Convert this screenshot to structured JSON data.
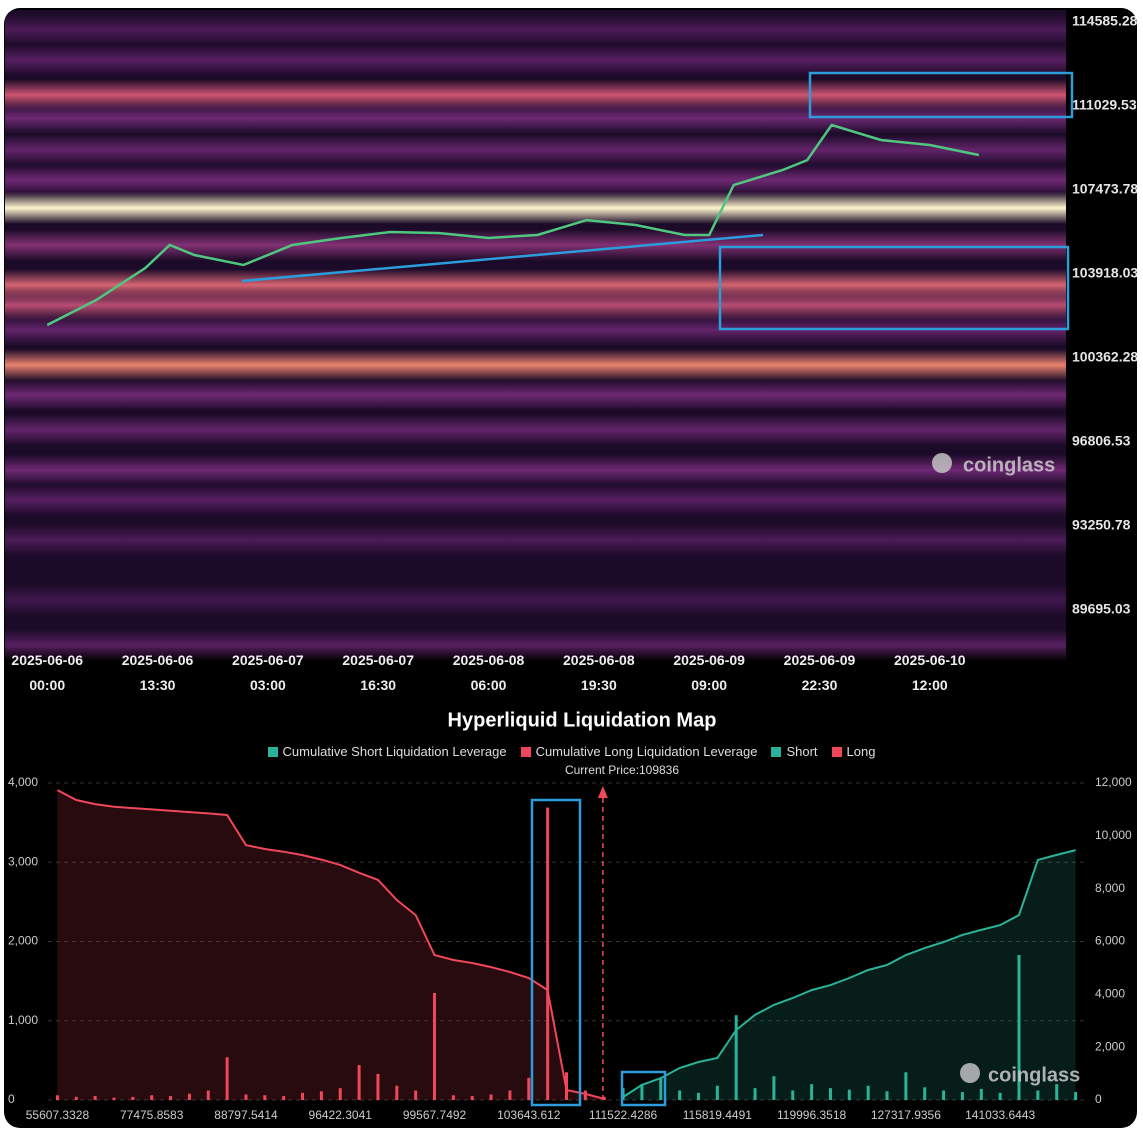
{
  "chart_data": [
    {
      "type": "heatmap",
      "xlim": [
        "2025-06-05 18:50",
        "2025-06-11 04:40"
      ],
      "ylim": [
        88086,
        115093
      ],
      "yticks": [
        114585.28,
        111029.53,
        107473.78,
        103918.03,
        100362.28,
        96806.53,
        93250.78,
        89695.03
      ],
      "xticks": [
        "2025-06-06 00:00",
        "2025-06-06 13:30",
        "2025-06-07 03:00",
        "2025-06-07 16:30",
        "2025-06-08 06:00",
        "2025-06-08 19:30",
        "2025-06-09 09:00",
        "2025-06-09 22:30",
        "2025-06-10 12:00"
      ],
      "bands": [
        {
          "price": 114247,
          "level": 0.2
        },
        {
          "price": 112977,
          "level": 0.25
        },
        {
          "price": 111495,
          "level": 0.6
        },
        {
          "price": 110520,
          "level": 0.35
        },
        {
          "price": 109167,
          "level": 0.3
        },
        {
          "price": 107897,
          "level": 0.35
        },
        {
          "price": 106712,
          "level": 1.0
        },
        {
          "price": 105145,
          "level": 0.4
        },
        {
          "price": 103452,
          "level": 0.65
        },
        {
          "price": 102605,
          "level": 0.55
        },
        {
          "price": 101547,
          "level": 0.3
        },
        {
          "price": 100065,
          "level": 0.75
        },
        {
          "price": 98795,
          "level": 0.35
        },
        {
          "price": 97314,
          "level": 0.3
        },
        {
          "price": 95620,
          "level": 0.35
        },
        {
          "price": 94350,
          "level": 0.25
        },
        {
          "price": 92657,
          "level": 0.2
        },
        {
          "price": 90117,
          "level": 0.15
        },
        {
          "price": 88212,
          "level": 0.25
        }
      ],
      "price": {
        "color": "#4fc77f",
        "x": [
          "2025-06-06 00:00",
          "2025-06-06 06:00",
          "2025-06-06 12:00",
          "2025-06-06 15:00",
          "2025-06-06 18:00",
          "2025-06-07 00:00",
          "2025-06-07 06:00",
          "2025-06-07 12:00",
          "2025-06-07 18:00",
          "2025-06-08 00:00",
          "2025-06-08 06:00",
          "2025-06-08 12:00",
          "2025-06-08 18:00",
          "2025-06-09 00:00",
          "2025-06-09 06:00",
          "2025-06-09 09:00",
          "2025-06-09 12:00",
          "2025-06-09 18:00",
          "2025-06-09 21:00",
          "2025-06-10 00:00",
          "2025-06-10 06:00",
          "2025-06-10 12:00",
          "2025-06-10 18:00"
        ],
        "values": [
          101760,
          102817,
          104170,
          105145,
          104720,
          104300,
          105145,
          105440,
          105695,
          105650,
          105440,
          105570,
          106200,
          105990,
          105570,
          105570,
          107685,
          108320,
          108740,
          110225,
          109590,
          109380,
          108955
        ]
      },
      "watermark": "coinglass"
    },
    {
      "type": "bar",
      "title": "Hyperliquid Liquidation Map",
      "annotation": "Current Price:109836",
      "current_price": 109836,
      "watermark": "coinglass",
      "categories": [
        55607.3328,
        null,
        null,
        null,
        null,
        77475.8583,
        null,
        null,
        null,
        null,
        88797.5414,
        null,
        null,
        null,
        null,
        96422.3041,
        null,
        null,
        null,
        null,
        99567.7492,
        null,
        null,
        null,
        null,
        103643.612,
        null,
        null,
        null,
        null,
        111522.4286,
        null,
        null,
        null,
        null,
        115819.4491,
        null,
        null,
        null,
        null,
        119996.3518,
        null,
        null,
        null,
        null,
        127317.9356,
        null,
        null,
        null,
        null,
        141033.6443,
        null,
        null,
        null,
        null
      ],
      "ylim": [
        0,
        4000
      ],
      "yticks": [
        0,
        {
          "value": 1000,
          "label": "1,000"
        },
        {
          "value": 2000,
          "label": "2,000"
        },
        {
          "value": 3000,
          "label": "3,000"
        },
        {
          "value": 4000,
          "label": "4,000"
        }
      ],
      "y2lim": [
        0,
        12000
      ],
      "y2ticks": [
        0,
        {
          "value": 2000,
          "label": "2,000"
        },
        {
          "value": 4000,
          "label": "4,000"
        },
        {
          "value": 6000,
          "label": "6,000"
        },
        {
          "value": 8000,
          "label": "8,000"
        },
        {
          "value": 10000,
          "label": "10,000"
        },
        {
          "value": 12000,
          "label": "12,000"
        }
      ],
      "grid": true,
      "series": [
        {
          "name": "Cumulative Short Liquidation Leverage",
          "color": "#2bb39a",
          "type": "area",
          "axis": "y2",
          "values": [
            null,
            null,
            null,
            null,
            null,
            null,
            null,
            null,
            null,
            null,
            null,
            null,
            null,
            null,
            null,
            null,
            null,
            null,
            null,
            null,
            null,
            null,
            null,
            null,
            null,
            null,
            null,
            null,
            null,
            null,
            115,
            570,
            830,
            1210,
            1440,
            1590,
            2650,
            3220,
            3600,
            3860,
            4160,
            4350,
            4620,
            4920,
            5110,
            5490,
            5750,
            5980,
            6250,
            6440,
            6620,
            7000,
            9090,
            9280,
            9460
          ]
        },
        {
          "name": "Cumulative Long Liquidation Leverage",
          "color": "#f0475a",
          "type": "area",
          "axis": "y2",
          "values": [
            11730,
            11355,
            11200,
            11100,
            11050,
            11000,
            10950,
            10900,
            10850,
            10790,
            9650,
            9500,
            9400,
            9270,
            9100,
            8900,
            8600,
            8330,
            7570,
            7000,
            5490,
            5300,
            5185,
            5030,
            4845,
            4620,
            4165,
            380,
            230,
            40,
            null,
            null,
            null,
            null,
            null,
            null,
            null,
            null,
            null,
            null,
            null,
            null,
            null,
            null,
            null,
            null,
            null,
            null,
            null,
            null,
            null,
            null,
            null,
            null,
            null
          ]
        },
        {
          "name": "Short",
          "color": "#2bb39a",
          "type": "bar",
          "values": [
            null,
            null,
            null,
            null,
            null,
            null,
            null,
            null,
            null,
            null,
            null,
            null,
            null,
            null,
            null,
            null,
            null,
            null,
            null,
            null,
            null,
            null,
            null,
            null,
            null,
            null,
            null,
            null,
            null,
            null,
            150,
            200,
            280,
            120,
            90,
            180,
            1070,
            150,
            300,
            120,
            200,
            150,
            130,
            180,
            110,
            350,
            160,
            120,
            100,
            140,
            90,
            1830,
            120,
            200,
            100
          ]
        },
        {
          "name": "Long",
          "color": "#f0475a",
          "type": "bar",
          "values": [
            60,
            40,
            50,
            30,
            40,
            60,
            50,
            80,
            120,
            540,
            70,
            60,
            50,
            90,
            110,
            150,
            440,
            330,
            180,
            120,
            1350,
            60,
            50,
            70,
            120,
            280,
            3690,
            350,
            120,
            40,
            null,
            null,
            null,
            null,
            null,
            null,
            null,
            null,
            null,
            null,
            null,
            null,
            null,
            null,
            null,
            null,
            null,
            null,
            null,
            null,
            null,
            null,
            null,
            null,
            null
          ]
        }
      ]
    }
  ]
}
